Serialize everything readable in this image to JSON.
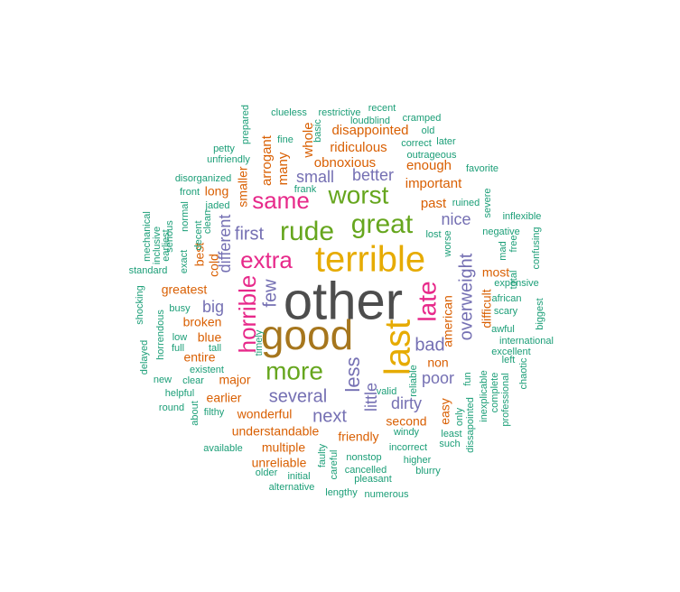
{
  "palette": {
    "gray": "#4d4d4d",
    "brown": "#a6761d",
    "gold": "#e6ab02",
    "magenta": "#e7298a",
    "green": "#66a61e",
    "purple": "#7570b3",
    "orange": "#d95f02",
    "teal": "#1b9e77"
  },
  "words": [
    {
      "text": "other",
      "color": "gray"
    },
    {
      "text": "good",
      "color": "brown"
    },
    {
      "text": "terrible",
      "color": "gold"
    },
    {
      "text": "last",
      "color": "gold"
    },
    {
      "text": "great",
      "color": "green"
    },
    {
      "text": "worst",
      "color": "green"
    },
    {
      "text": "rude",
      "color": "green"
    },
    {
      "text": "more",
      "color": "green"
    },
    {
      "text": "same",
      "color": "magenta"
    },
    {
      "text": "extra",
      "color": "magenta"
    },
    {
      "text": "horrible",
      "color": "magenta"
    },
    {
      "text": "late",
      "color": "magenta"
    },
    {
      "text": "overweight",
      "color": "purple"
    },
    {
      "text": "several",
      "color": "purple"
    },
    {
      "text": "next",
      "color": "purple"
    },
    {
      "text": "first",
      "color": "purple"
    },
    {
      "text": "less",
      "color": "purple"
    },
    {
      "text": "bad",
      "color": "purple"
    },
    {
      "text": "few",
      "color": "purple"
    },
    {
      "text": "nice",
      "color": "purple"
    },
    {
      "text": "small",
      "color": "purple"
    },
    {
      "text": "better",
      "color": "purple"
    },
    {
      "text": "poor",
      "color": "purple"
    },
    {
      "text": "big",
      "color": "purple"
    },
    {
      "text": "different",
      "color": "purple"
    },
    {
      "text": "dirty",
      "color": "purple"
    },
    {
      "text": "little",
      "color": "purple"
    },
    {
      "text": "disappointed",
      "color": "orange"
    },
    {
      "text": "ridiculous",
      "color": "orange"
    },
    {
      "text": "obnoxious",
      "color": "orange"
    },
    {
      "text": "enough",
      "color": "orange"
    },
    {
      "text": "important",
      "color": "orange"
    },
    {
      "text": "past",
      "color": "orange"
    },
    {
      "text": "arrogant",
      "color": "orange"
    },
    {
      "text": "many",
      "color": "orange"
    },
    {
      "text": "whole",
      "color": "orange"
    },
    {
      "text": "smaller",
      "color": "orange"
    },
    {
      "text": "long",
      "color": "orange"
    },
    {
      "text": "best",
      "color": "orange"
    },
    {
      "text": "cold",
      "color": "orange"
    },
    {
      "text": "greatest",
      "color": "orange"
    },
    {
      "text": "broken",
      "color": "orange"
    },
    {
      "text": "blue",
      "color": "orange"
    },
    {
      "text": "entire",
      "color": "orange"
    },
    {
      "text": "major",
      "color": "orange"
    },
    {
      "text": "earlier",
      "color": "orange"
    },
    {
      "text": "wonderful",
      "color": "orange"
    },
    {
      "text": "understandable",
      "color": "orange"
    },
    {
      "text": "multiple",
      "color": "orange"
    },
    {
      "text": "unreliable",
      "color": "orange"
    },
    {
      "text": "friendly",
      "color": "orange"
    },
    {
      "text": "second",
      "color": "orange"
    },
    {
      "text": "easy",
      "color": "orange"
    },
    {
      "text": "non",
      "color": "orange"
    },
    {
      "text": "american",
      "color": "orange"
    },
    {
      "text": "difficult",
      "color": "orange"
    },
    {
      "text": "most",
      "color": "orange"
    },
    {
      "text": "clueless",
      "color": "teal"
    },
    {
      "text": "restrictive",
      "color": "teal"
    },
    {
      "text": "recent",
      "color": "teal"
    },
    {
      "text": "loudblind",
      "color": "teal"
    },
    {
      "text": "cramped",
      "color": "teal"
    },
    {
      "text": "old",
      "color": "teal"
    },
    {
      "text": "prepared",
      "color": "teal"
    },
    {
      "text": "fine",
      "color": "teal"
    },
    {
      "text": "basic",
      "color": "teal"
    },
    {
      "text": "correct",
      "color": "teal"
    },
    {
      "text": "later",
      "color": "teal"
    },
    {
      "text": "outrageous",
      "color": "teal"
    },
    {
      "text": "petty",
      "color": "teal"
    },
    {
      "text": "unfriendly",
      "color": "teal"
    },
    {
      "text": "favorite",
      "color": "teal"
    },
    {
      "text": "disorganized",
      "color": "teal"
    },
    {
      "text": "frank",
      "color": "teal"
    },
    {
      "text": "front",
      "color": "teal"
    },
    {
      "text": "jaded",
      "color": "teal"
    },
    {
      "text": "normal",
      "color": "teal"
    },
    {
      "text": "clean",
      "color": "teal"
    },
    {
      "text": "decent",
      "color": "teal"
    },
    {
      "text": "exact",
      "color": "teal"
    },
    {
      "text": "serious",
      "color": "teal"
    },
    {
      "text": "inclusive",
      "color": "teal"
    },
    {
      "text": "earliest",
      "color": "teal"
    },
    {
      "text": "mechanical",
      "color": "teal"
    },
    {
      "text": "standard",
      "color": "teal"
    },
    {
      "text": "ruined",
      "color": "teal"
    },
    {
      "text": "severe",
      "color": "teal"
    },
    {
      "text": "inflexible",
      "color": "teal"
    },
    {
      "text": "negative",
      "color": "teal"
    },
    {
      "text": "lost",
      "color": "teal"
    },
    {
      "text": "worse",
      "color": "teal"
    },
    {
      "text": "free",
      "color": "teal"
    },
    {
      "text": "mad",
      "color": "teal"
    },
    {
      "text": "confusing",
      "color": "teal"
    },
    {
      "text": "total",
      "color": "teal"
    },
    {
      "text": "expensive",
      "color": "teal"
    },
    {
      "text": "african",
      "color": "teal"
    },
    {
      "text": "scary",
      "color": "teal"
    },
    {
      "text": "biggest",
      "color": "teal"
    },
    {
      "text": "awful",
      "color": "teal"
    },
    {
      "text": "international",
      "color": "teal"
    },
    {
      "text": "excellent",
      "color": "teal"
    },
    {
      "text": "left",
      "color": "teal"
    },
    {
      "text": "chaotic",
      "color": "teal"
    },
    {
      "text": "professional",
      "color": "teal"
    },
    {
      "text": "complete",
      "color": "teal"
    },
    {
      "text": "inexplicable",
      "color": "teal"
    },
    {
      "text": "fun",
      "color": "teal"
    },
    {
      "text": "dissapointed",
      "color": "teal"
    },
    {
      "text": "only",
      "color": "teal"
    },
    {
      "text": "least",
      "color": "teal"
    },
    {
      "text": "such",
      "color": "teal"
    },
    {
      "text": "windy",
      "color": "teal"
    },
    {
      "text": "incorrect",
      "color": "teal"
    },
    {
      "text": "higher",
      "color": "teal"
    },
    {
      "text": "blurry",
      "color": "teal"
    },
    {
      "text": "nonstop",
      "color": "teal"
    },
    {
      "text": "cancelled",
      "color": "teal"
    },
    {
      "text": "pleasant",
      "color": "teal"
    },
    {
      "text": "numerous",
      "color": "teal"
    },
    {
      "text": "lengthy",
      "color": "teal"
    },
    {
      "text": "careful",
      "color": "teal"
    },
    {
      "text": "faulty",
      "color": "teal"
    },
    {
      "text": "initial",
      "color": "teal"
    },
    {
      "text": "older",
      "color": "teal"
    },
    {
      "text": "alternative",
      "color": "teal"
    },
    {
      "text": "available",
      "color": "teal"
    },
    {
      "text": "valid",
      "color": "teal"
    },
    {
      "text": "reliable",
      "color": "teal"
    },
    {
      "text": "timely",
      "color": "teal"
    },
    {
      "text": "existent",
      "color": "teal"
    },
    {
      "text": "clear",
      "color": "teal"
    },
    {
      "text": "new",
      "color": "teal"
    },
    {
      "text": "helpful",
      "color": "teal"
    },
    {
      "text": "round",
      "color": "teal"
    },
    {
      "text": "filthy",
      "color": "teal"
    },
    {
      "text": "about",
      "color": "teal"
    },
    {
      "text": "tall",
      "color": "teal"
    },
    {
      "text": "full",
      "color": "teal"
    },
    {
      "text": "low",
      "color": "teal"
    },
    {
      "text": "busy",
      "color": "teal"
    },
    {
      "text": "horrendous",
      "color": "teal"
    },
    {
      "text": "shocking",
      "color": "teal"
    },
    {
      "text": "delayed",
      "color": "teal"
    }
  ]
}
